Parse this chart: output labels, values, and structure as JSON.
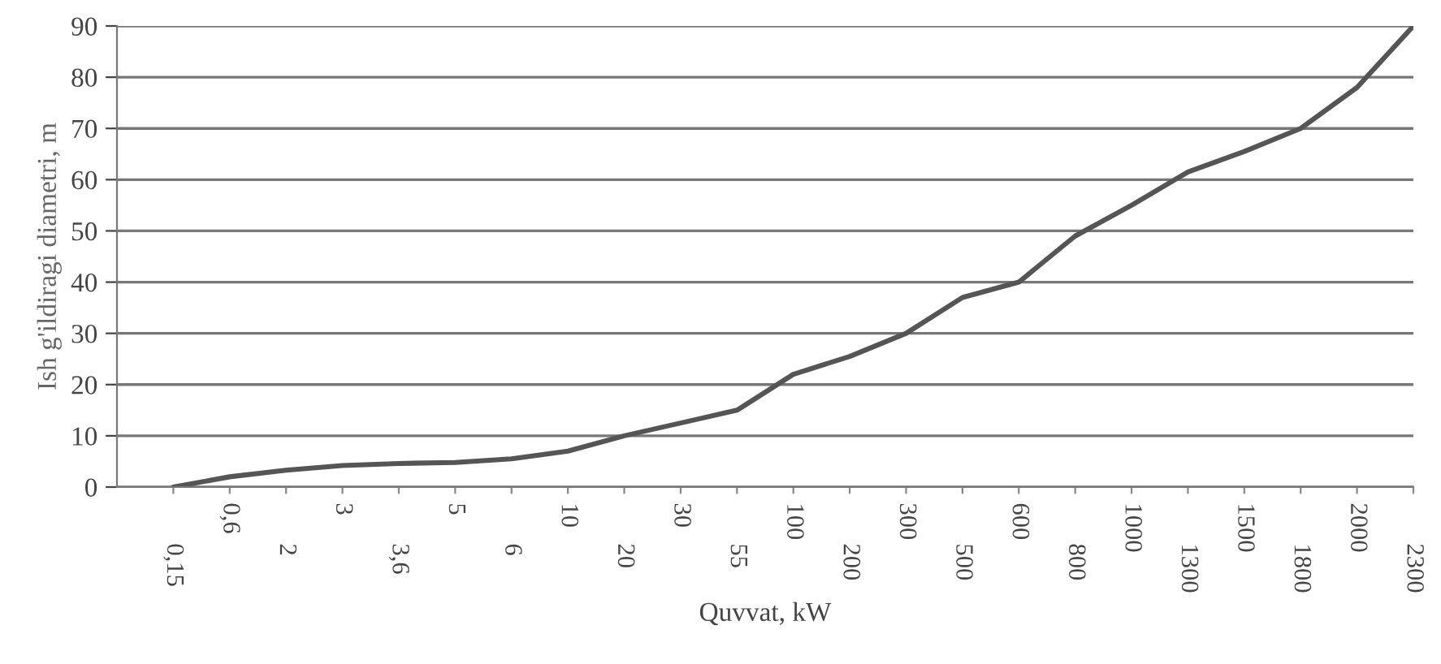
{
  "chart_data": {
    "type": "line",
    "xlabel": "Quvvat, kW",
    "ylabel": "Ish g'ildiragi diametri, m",
    "categories": [
      "0,15",
      "0,6",
      "2",
      "3",
      "3,6",
      "5",
      "6",
      "10",
      "20",
      "30",
      "55",
      "100",
      "200",
      "300",
      "500",
      "600",
      "800",
      "1000",
      "1300",
      "1500",
      "1800",
      "2000",
      "2300"
    ],
    "series": [
      {
        "color": "#555555",
        "values": [
          0,
          2,
          3.3,
          4.2,
          4.6,
          4.8,
          5.5,
          7,
          10,
          12.5,
          15,
          22,
          25.5,
          30,
          37,
          40,
          49,
          55,
          61.5,
          65.5,
          70,
          78,
          90
        ]
      }
    ],
    "ylim": [
      0,
      90
    ],
    "yticks": [
      0,
      10,
      20,
      30,
      40,
      50,
      60,
      70,
      80,
      90
    ],
    "grid": "y",
    "marker": "none",
    "line_style": "solid"
  }
}
